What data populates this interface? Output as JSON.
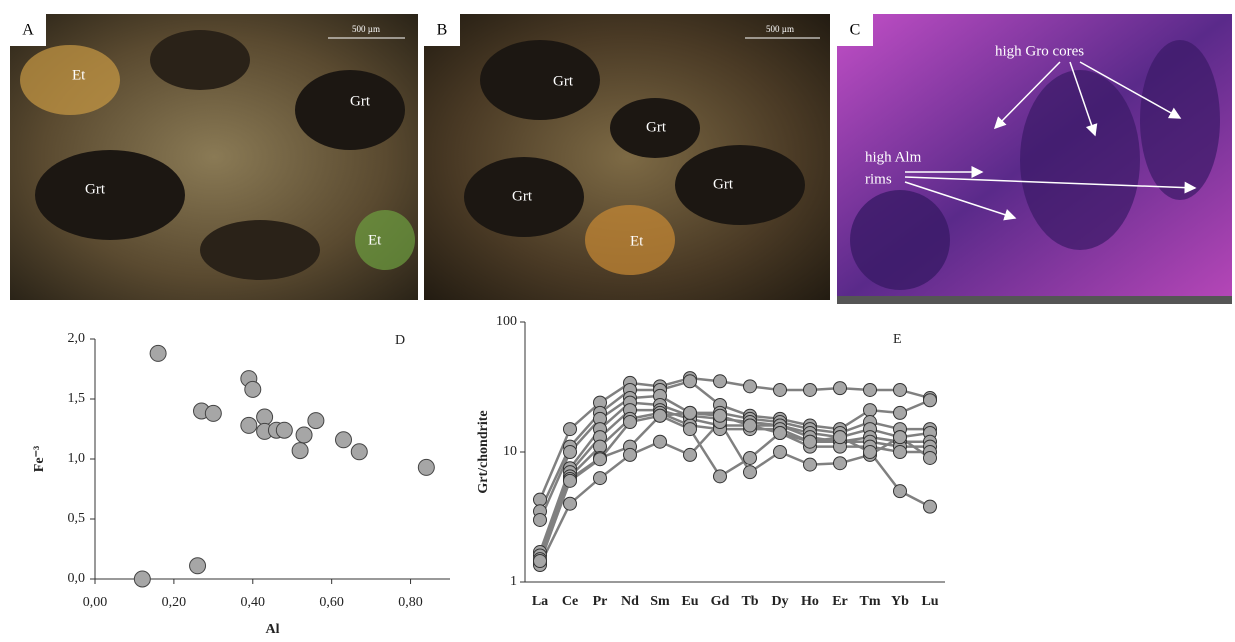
{
  "photos": [
    {
      "label": "A",
      "scale": "500 µm",
      "labels": [
        "Et",
        "Grt",
        "Grt",
        "Et"
      ]
    },
    {
      "label": "B",
      "scale": "500 µm",
      "labels": [
        "Grt",
        "Grt",
        "Grt",
        "Grt",
        "Et"
      ]
    },
    {
      "label": "C",
      "labels": [
        "high Gro cores",
        "high Alm",
        "rims"
      ]
    }
  ],
  "chart_data": [
    {
      "type": "scatter",
      "annotation": "D",
      "x_label": "Al",
      "y_label": "Fe⁻³",
      "x": [
        0.12,
        0.16,
        0.26,
        0.27,
        0.3,
        0.39,
        0.4,
        0.39,
        0.43,
        0.43,
        0.46,
        0.48,
        0.52,
        0.53,
        0.56,
        0.63,
        0.67,
        0.84
      ],
      "values": [
        0.0,
        1.88,
        0.11,
        1.4,
        1.38,
        1.67,
        1.58,
        1.28,
        1.35,
        1.23,
        1.24,
        1.24,
        1.07,
        1.2,
        1.32,
        1.16,
        1.06,
        0.93
      ],
      "color": "#a6a6a6",
      "xlim": [
        0,
        0.9
      ],
      "ylim": [
        0,
        2.0
      ],
      "xticks": [
        {
          "value": 0,
          "label": "0,00"
        },
        {
          "value": 0.2,
          "label": "0,20"
        },
        {
          "value": 0.4,
          "label": "0,40"
        },
        {
          "value": 0.6,
          "label": "0,60"
        },
        {
          "value": 0.8,
          "label": "0,80"
        }
      ],
      "yticks": [
        {
          "value": 0,
          "label": "0,0"
        },
        {
          "value": 0.5,
          "label": "0,5"
        },
        {
          "value": 1.0,
          "label": "1,0"
        },
        {
          "value": 1.5,
          "label": "1,5"
        },
        {
          "value": 2.0,
          "label": "2,0"
        }
      ]
    },
    {
      "type": "line",
      "annotation": "E",
      "y_label": "Grt/chondrite",
      "log_scale": true,
      "categories": [
        "La",
        "Ce",
        "Pr",
        "Nd",
        "Sm",
        "Eu",
        "Gd",
        "Tb",
        "Dy",
        "Ho",
        "Er",
        "Tm",
        "Yb",
        "Lu"
      ],
      "series": [
        {
          "color": "#808080",
          "values": [
            4.3,
            15,
            24,
            34,
            32,
            37,
            35,
            32,
            30,
            30,
            31,
            30,
            30,
            26
          ]
        },
        {
          "color": "#808080",
          "values": [
            3.5,
            11,
            20,
            30,
            30,
            35,
            23,
            19,
            18,
            16,
            15,
            21,
            20,
            25
          ]
        },
        {
          "color": "#808080",
          "values": [
            3.0,
            10,
            18,
            26,
            27,
            20,
            20,
            18,
            17,
            15,
            14,
            17,
            15,
            15
          ]
        },
        {
          "color": "#808080",
          "values": [
            1.7,
            7.5,
            15,
            24,
            23,
            19,
            18,
            17,
            16,
            14,
            13,
            15,
            13,
            14
          ]
        },
        {
          "color": "#808080",
          "values": [
            1.6,
            7.0,
            13,
            21,
            21,
            18,
            16,
            16,
            16,
            13,
            12,
            13,
            12,
            12
          ]
        },
        {
          "color": "#808080",
          "values": [
            1.5,
            6.5,
            11,
            18,
            20,
            16,
            15,
            15,
            15,
            12,
            12,
            12,
            11,
            11
          ]
        },
        {
          "color": "#808080",
          "values": [
            1.4,
            6.2,
            9,
            11,
            19,
            15,
            6.5,
            9,
            14,
            11,
            11,
            11,
            10,
            10
          ]
        },
        {
          "color": "#808080",
          "values": [
            1.35,
            4,
            6.3,
            9.5,
            12,
            9.5,
            17,
            7,
            10,
            8,
            8.2,
            9.5,
            13,
            9
          ]
        },
        {
          "color": "#808080",
          "values": [
            1.45,
            6,
            8.8,
            17,
            19,
            20,
            19,
            16,
            14,
            12,
            13,
            10,
            5,
            3.8
          ]
        }
      ],
      "ylim": [
        1,
        100
      ],
      "yticks": [
        1,
        10,
        100
      ]
    }
  ]
}
